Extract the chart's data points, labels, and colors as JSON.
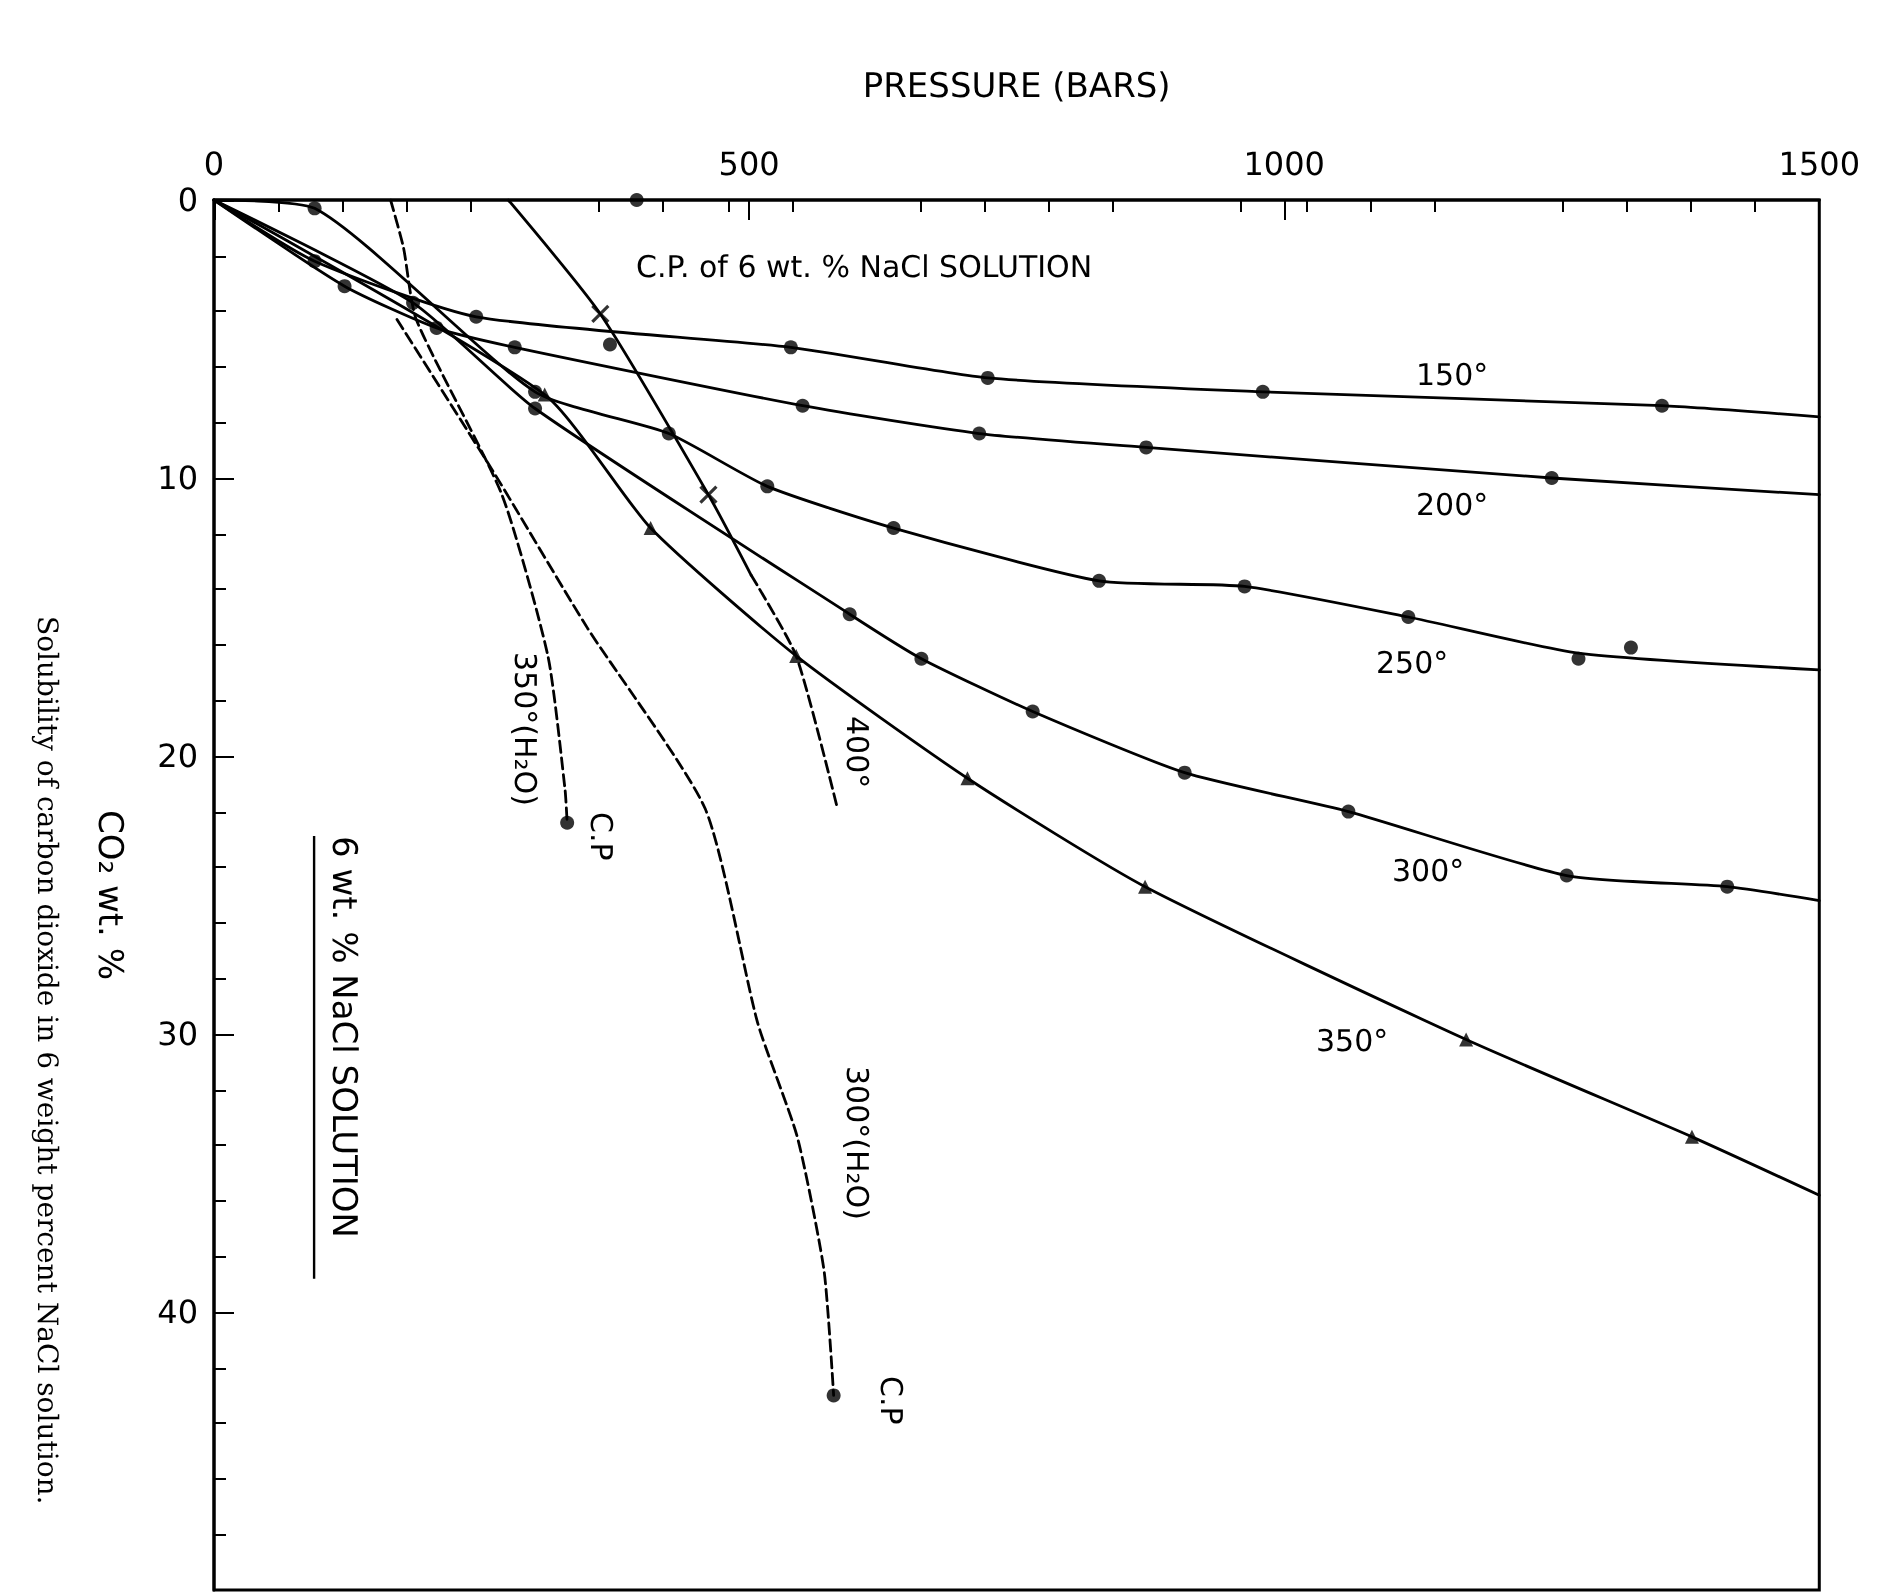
{
  "chart_data": {
    "type": "line",
    "xlabel": "PRESSURE (BARS)",
    "ylabel": "CO₂ wt. %",
    "xlim": [
      0,
      1500
    ],
    "xticks": [
      0,
      500,
      1000,
      1500
    ],
    "ylim": [
      50,
      0
    ],
    "yticks": [
      0,
      10,
      20,
      30,
      40
    ],
    "grid": false,
    "series": [
      {
        "color": "#000000",
        "marker": "none",
        "line_style": "solid",
        "x": [
          0,
          94,
          245,
          539,
          723,
          980,
          1353,
          1500
        ],
        "values": [
          0,
          2.2,
          4.2,
          5.3,
          6.4,
          6.9,
          7.4,
          7.8
        ]
      },
      {
        "type": "scatter",
        "color": "#000000",
        "marker": "circle",
        "x": [
          94,
          245,
          539,
          723,
          980,
          1353
        ],
        "values": [
          2.2,
          4.2,
          5.3,
          6.4,
          6.9,
          7.4
        ]
      },
      {
        "color": "#000000",
        "marker": "none",
        "line_style": "solid",
        "x": [
          0,
          122,
          208,
          281,
          550,
          715,
          871,
          1250,
          1500
        ],
        "values": [
          0,
          3.1,
          4.6,
          5.3,
          7.4,
          8.4,
          8.9,
          10.0,
          10.6
        ]
      },
      {
        "type": "scatter",
        "color": "#000000",
        "marker": "circle",
        "x": [
          122,
          208,
          281,
          550,
          715,
          871,
          1250
        ],
        "values": [
          3.1,
          4.6,
          5.3,
          7.4,
          8.4,
          8.9,
          10.0
        ]
      },
      {
        "color": "#000000",
        "marker": "none",
        "line_style": "solid",
        "x": [
          0,
          94,
          300,
          425,
          517,
          635,
          827,
          963,
          1116,
          1275,
          1500
        ],
        "values": [
          0,
          0.3,
          6.9,
          8.4,
          10.3,
          11.8,
          13.7,
          13.9,
          15.0,
          16.3,
          16.9
        ]
      },
      {
        "type": "scatter",
        "color": "#000000",
        "marker": "circle",
        "x": [
          94,
          300,
          425,
          517,
          635,
          827,
          963,
          1116,
          1275,
          1324
        ],
        "values": [
          0.3,
          6.9,
          8.4,
          10.3,
          11.8,
          13.7,
          13.9,
          15.0,
          16.5,
          16.1
        ]
      },
      {
        "color": "#000000",
        "marker": "none",
        "line_style": "solid",
        "x": [
          0,
          186,
          300,
          594,
          661,
          765,
          907,
          1060,
          1264,
          1414,
          1500
        ],
        "values": [
          0,
          3.7,
          7.5,
          14.9,
          16.5,
          18.4,
          20.6,
          22.0,
          24.3,
          24.7,
          25.2
        ]
      },
      {
        "type": "scatter",
        "color": "#000000",
        "marker": "circle",
        "x": [
          186,
          300,
          594,
          661,
          765,
          907,
          1060,
          1264,
          1414
        ],
        "values": [
          3.7,
          7.5,
          14.9,
          16.5,
          18.4,
          20.6,
          22.0,
          24.3,
          24.7
        ]
      },
      {
        "color": "#000000",
        "marker": "none",
        "line_style": "solid",
        "x": [
          0,
          309,
          408,
          544,
          704,
          870,
          1170,
          1381,
          1500
        ],
        "values": [
          0,
          7.0,
          11.8,
          16.4,
          20.8,
          24.7,
          30.2,
          33.7,
          35.8
        ]
      },
      {
        "type": "scatter",
        "color": "#000000",
        "marker": "triangle",
        "x": [
          309,
          408,
          544,
          704,
          870,
          1170,
          1381
        ],
        "values": [
          7.0,
          11.8,
          16.4,
          20.8,
          24.7,
          30.2,
          33.7
        ]
      },
      {
        "color": "#000000",
        "marker": "none",
        "line_style": "solid",
        "x": [
          275,
          361,
          462,
          502
        ],
        "values": [
          0,
          4.1,
          10.6,
          13.5
        ]
      },
      {
        "color": "#000000",
        "marker": "none",
        "line_style": "dashed",
        "x": [
          502,
          544,
          582
        ],
        "values": [
          13.5,
          16.4,
          21.8
        ]
      },
      {
        "type": "scatter",
        "color": "#000000",
        "marker": "cross",
        "x": [
          361,
          462
        ],
        "values": [
          4.1,
          10.6
        ]
      },
      {
        "type": "scatter",
        "color": "#000000",
        "marker": "circle",
        "x": [
          370,
          395
        ],
        "values": [
          5.2,
          0
        ]
      },
      {
        "color": "#000000",
        "marker": "none",
        "line_style": "dashed",
        "x": [
          165,
          177,
          189,
          269,
          312,
          328,
          330
        ],
        "values": [
          0,
          1.7,
          4.3,
          10.6,
          16.4,
          21.2,
          22.4
        ]
      },
      {
        "color": "#000000",
        "marker": "none",
        "line_style": "dashed",
        "x": [
          171,
          263,
          349,
          459,
          508,
          545,
          570,
          579
        ],
        "values": [
          4.3,
          9.9,
          15.4,
          21.9,
          29.6,
          33.7,
          38.5,
          43.0
        ]
      },
      {
        "type": "scatter",
        "color": "#000000",
        "marker": "circle",
        "x": [
          330,
          579
        ],
        "values": [
          22.4,
          43.0
        ]
      }
    ],
    "annotations": [
      "C.P. of 6 wt. % NaCl SOLUTION",
      "150°",
      "200°",
      "250°",
      "300°",
      "350°",
      "400°",
      "350°(H₂O)",
      "C.P",
      "300°(H₂O)",
      "C.P",
      "6 wt. % NaCl SOLUTION",
      "Solubility of carbon dioxide in 6 weight percent NaCl solution."
    ]
  }
}
